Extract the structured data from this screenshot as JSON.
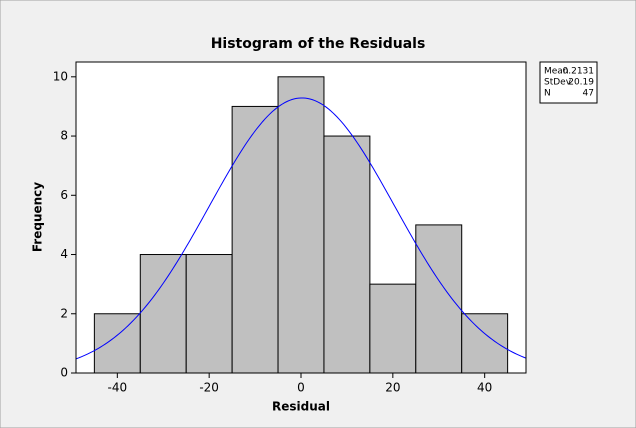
{
  "chart_data": {
    "type": "histogram",
    "title": "Histogram of the Residuals",
    "x_label": "Residual",
    "y_label": "Frequency",
    "bins": [
      -45,
      -35,
      -25,
      -15,
      -5,
      5,
      15,
      25,
      35,
      45
    ],
    "values": [
      2,
      4,
      4,
      9,
      10,
      8,
      3,
      5,
      2
    ],
    "color": "#c0c0c0",
    "curve_color": "#0000ff",
    "xlim": [
      -49,
      49
    ],
    "xticks": [
      -40,
      -20,
      0,
      20,
      40
    ],
    "ylim": [
      0,
      10.5
    ],
    "yticks": [
      0,
      2,
      4,
      6,
      8,
      10
    ],
    "grid": false,
    "stats": [
      {
        "label": "Mean",
        "value": 0.2131
      },
      {
        "label": "StDev",
        "value": 20.19
      },
      {
        "label": "N",
        "value": 47
      }
    ]
  }
}
